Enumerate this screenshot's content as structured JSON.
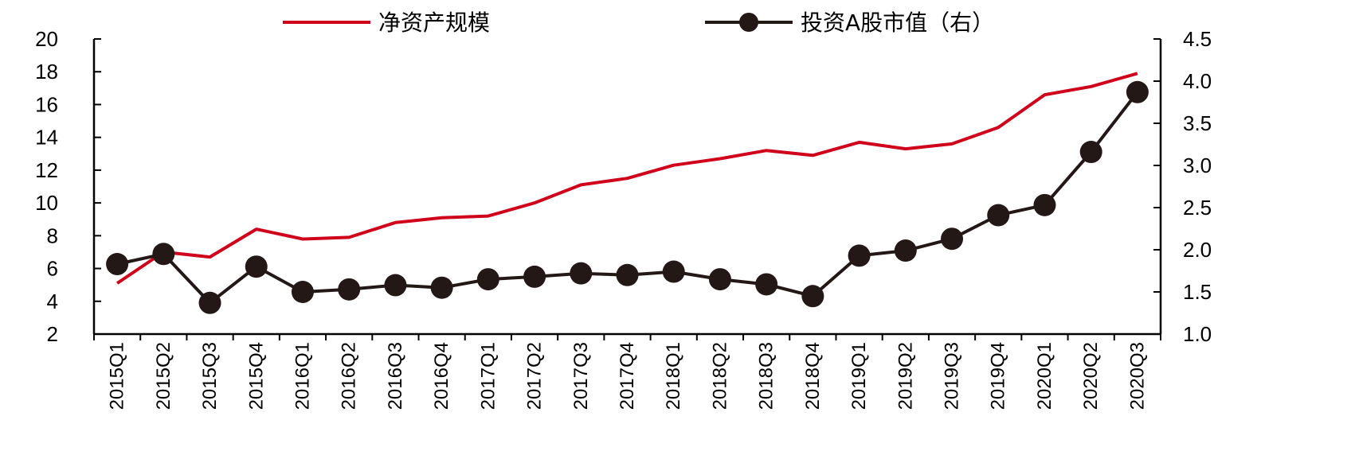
{
  "chart_data": {
    "type": "line",
    "categories": [
      "2015Q1",
      "2015Q2",
      "2015Q3",
      "2015Q4",
      "2016Q1",
      "2016Q2",
      "2016Q3",
      "2016Q4",
      "2017Q1",
      "2017Q2",
      "2017Q3",
      "2017Q4",
      "2018Q1",
      "2018Q2",
      "2018Q3",
      "2018Q4",
      "2019Q1",
      "2019Q2",
      "2019Q3",
      "2019Q4",
      "2020Q1",
      "2020Q2",
      "2020Q3"
    ],
    "series": [
      {
        "name": "净资产规模",
        "axis": "left",
        "color": "#d0021b",
        "marker": "none",
        "values": [
          5.1,
          7.0,
          6.7,
          8.4,
          7.8,
          7.9,
          8.8,
          9.1,
          9.2,
          10.0,
          11.1,
          11.5,
          12.3,
          12.7,
          13.2,
          12.9,
          13.7,
          13.3,
          13.6,
          14.6,
          16.6,
          17.1,
          17.9
        ]
      },
      {
        "name": "投资A股市值（右）",
        "axis": "right",
        "color": "#231815",
        "marker": "circle",
        "values": [
          1.83,
          1.95,
          1.37,
          1.8,
          1.5,
          1.53,
          1.58,
          1.55,
          1.65,
          1.68,
          1.72,
          1.7,
          1.74,
          1.65,
          1.59,
          1.45,
          1.93,
          1.99,
          2.13,
          2.41,
          2.53,
          3.16,
          3.87
        ]
      }
    ],
    "y_left": {
      "min": 2,
      "max": 20,
      "ticks": [
        "2",
        "4",
        "6",
        "8",
        "10",
        "12",
        "14",
        "16",
        "18",
        "20"
      ]
    },
    "y_right": {
      "min": 1.0,
      "max": 4.5,
      "ticks": [
        "1.0",
        "1.5",
        "2.0",
        "2.5",
        "3.0",
        "3.5",
        "4.0",
        "4.5"
      ]
    },
    "grid": false,
    "legend_position": "top"
  }
}
